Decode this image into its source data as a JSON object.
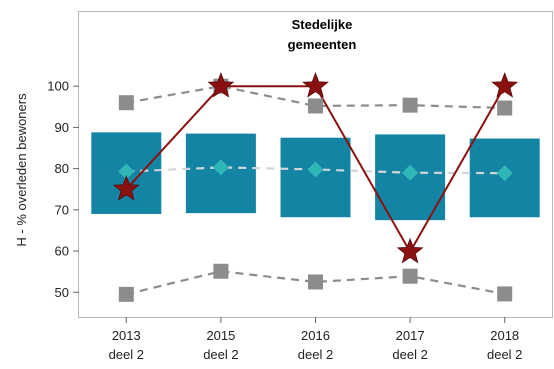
{
  "chart_data": {
    "type": "box-range",
    "title_lines": [
      "Stedelijke",
      "gemeenten"
    ],
    "ylabel": "H - % overleden bewoners",
    "ylim": [
      44,
      118
    ],
    "yticks": [
      50,
      60,
      70,
      80,
      90,
      100
    ],
    "categories": [
      {
        "year": "2013",
        "part": "deel 2"
      },
      {
        "year": "2015",
        "part": "deel 2"
      },
      {
        "year": "2016",
        "part": "deel 2"
      },
      {
        "year": "2017",
        "part": "deel 2"
      },
      {
        "year": "2018",
        "part": "deel 2"
      }
    ],
    "box_low": [
      69,
      69.2,
      68.2,
      67.5,
      68.2
    ],
    "box_high": [
      88.8,
      88.5,
      87.5,
      88.3,
      87.3
    ],
    "series": [
      {
        "role": "p95",
        "values": [
          96,
          100,
          95.2,
          95.4,
          94.7
        ],
        "marker": "square",
        "line": "dashed",
        "color": "#8c8c8c"
      },
      {
        "role": "median",
        "values": [
          79.3,
          80.3,
          79.8,
          79,
          78.9
        ],
        "marker": "diamond",
        "line": "dashed",
        "color": "#2fb7b7"
      },
      {
        "role": "p5",
        "values": [
          49.5,
          55.1,
          52.5,
          53.9,
          49.6
        ],
        "marker": "square",
        "line": "dashed",
        "color": "#8c8c8c"
      },
      {
        "role": "selected",
        "values": [
          75,
          100,
          100,
          59.8,
          100
        ],
        "marker": "star",
        "line": "solid",
        "color": "#8b1010"
      }
    ],
    "box_color": "#1484a4"
  }
}
